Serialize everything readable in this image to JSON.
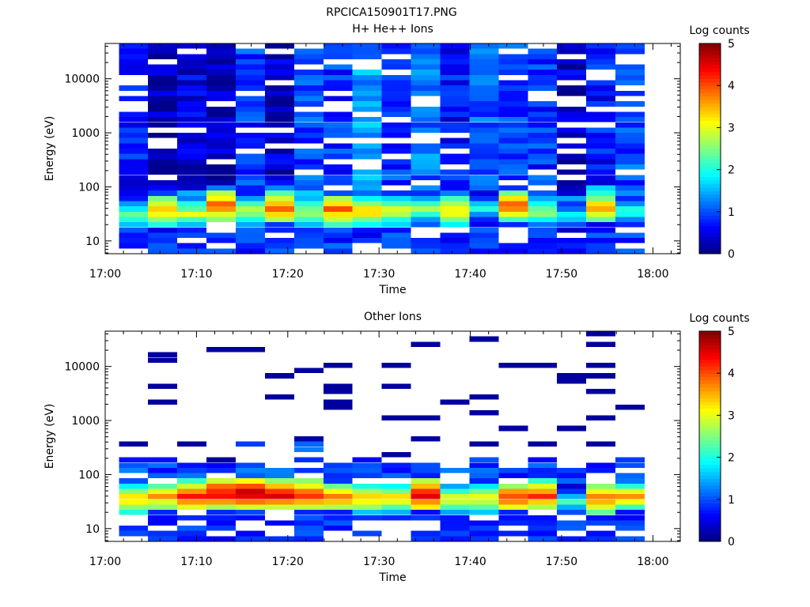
{
  "figure_title": "RPCICA150901T17.PNG",
  "chart_data": [
    {
      "type": "heatmap",
      "title": "H+ He++ Ions",
      "xlabel": "Time",
      "ylabel": "Energy (eV)",
      "x_ticks": [
        "17:00",
        "17:10",
        "17:20",
        "17:30",
        "17:40",
        "17:50",
        "18:00"
      ],
      "x_range_minutes": [
        0,
        63
      ],
      "y_scale": "log",
      "y_range": [
        5.8,
        45000
      ],
      "y_ticks": [
        10,
        100,
        1000,
        10000
      ],
      "y_tick_labels": [
        "10",
        "100",
        "1000",
        "10000"
      ],
      "colorbar": {
        "label": "Log counts",
        "range": [
          0,
          5
        ],
        "ticks": [
          "0",
          "1",
          "2",
          "3",
          "4",
          "5"
        ],
        "colormap": "jet"
      },
      "time_bins_start_minutes": [
        1.5,
        4.7,
        7.9,
        11.1,
        14.3,
        17.5,
        20.7,
        23.9,
        27.1,
        30.3,
        33.5,
        36.7,
        39.9,
        43.1,
        46.3,
        49.5,
        52.7,
        55.9
      ],
      "time_bin_width_minutes": 3.2,
      "low_energy_peak_eV": [
        30,
        38,
        32,
        45,
        35,
        40,
        35,
        38,
        34,
        35,
        40,
        36,
        40,
        45,
        35,
        30,
        40,
        35
      ],
      "peak_log_counts": [
        2.6,
        3.6,
        3.0,
        4.1,
        3.0,
        3.8,
        2.9,
        3.9,
        3.4,
        3.1,
        2.6,
        3.4,
        2.0,
        3.9,
        2.8,
        2.0,
        3.7,
        2.3
      ],
      "upper_band_log_counts": [
        0.6,
        0.2,
        0.4,
        0.3,
        0.8,
        0.3,
        0.9,
        0.8,
        1.3,
        0.8,
        1.1,
        0.6,
        1.0,
        0.9,
        0.8,
        0.3,
        0.6,
        0.9
      ]
    },
    {
      "type": "heatmap",
      "title": "Other Ions",
      "xlabel": "Time",
      "ylabel": "Energy (eV)",
      "x_ticks": [
        "17:00",
        "17:10",
        "17:20",
        "17:30",
        "17:40",
        "17:50",
        "18:00"
      ],
      "x_range_minutes": [
        0,
        63
      ],
      "y_scale": "log",
      "y_range": [
        5.8,
        45000
      ],
      "y_ticks": [
        10,
        100,
        1000,
        10000
      ],
      "y_tick_labels": [
        "10",
        "100",
        "1000",
        "10000"
      ],
      "colorbar": {
        "label": "Log counts",
        "range": [
          0,
          5
        ],
        "ticks": [
          "0",
          "1",
          "2",
          "3",
          "4",
          "5"
        ],
        "colormap": "jet"
      },
      "time_bins_start_minutes": [
        1.5,
        4.7,
        7.9,
        11.1,
        14.3,
        17.5,
        20.7,
        23.9,
        27.1,
        30.3,
        33.5,
        36.7,
        39.9,
        43.1,
        46.3,
        49.5,
        52.7,
        55.9
      ],
      "time_bin_width_minutes": 3.2,
      "low_energy_peak_eV": [
        35,
        38,
        40,
        45,
        45,
        42,
        40,
        38,
        36,
        35,
        40,
        35,
        36,
        38,
        40,
        32,
        36,
        38
      ],
      "peak_log_counts": [
        3.6,
        3.7,
        4.3,
        4.6,
        4.8,
        4.6,
        4.4,
        3.9,
        3.6,
        3.4,
        4.6,
        3.2,
        3.3,
        4.2,
        4.1,
        2.3,
        4.0,
        3.6
      ],
      "band_top_eV": [
        230,
        190,
        170,
        160,
        430,
        160,
        400,
        150,
        200,
        150,
        200,
        130,
        230,
        160,
        230,
        170,
        170,
        200
      ]
    }
  ]
}
